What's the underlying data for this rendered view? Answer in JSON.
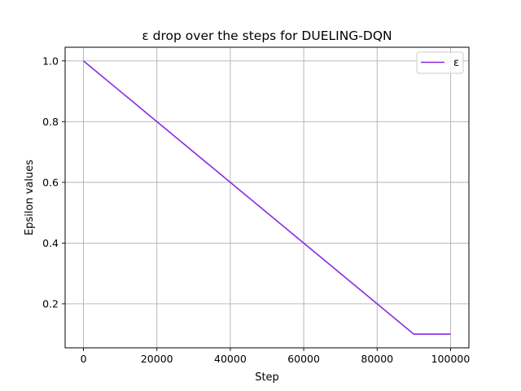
{
  "chart_data": {
    "type": "line",
    "title": "ε drop over the steps for DUELING-DQN",
    "xlabel": "Step",
    "ylabel": "Epsilon values",
    "xlim": [
      -5000,
      105000
    ],
    "ylim": [
      0.055,
      1.045
    ],
    "xticks": [
      0,
      20000,
      40000,
      60000,
      80000,
      100000
    ],
    "xtick_labels": [
      "0",
      "20000",
      "40000",
      "60000",
      "80000",
      "100000"
    ],
    "yticks": [
      0.2,
      0.4,
      0.6,
      0.8,
      1.0
    ],
    "ytick_labels": [
      "0.2",
      "0.4",
      "0.6",
      "0.8",
      "1.0"
    ],
    "grid": true,
    "legend_position": "top-right",
    "series": [
      {
        "name": "ε",
        "color": "#8a2be2",
        "x": [
          0,
          90000,
          100000
        ],
        "y": [
          1.0,
          0.1,
          0.1
        ]
      }
    ]
  }
}
